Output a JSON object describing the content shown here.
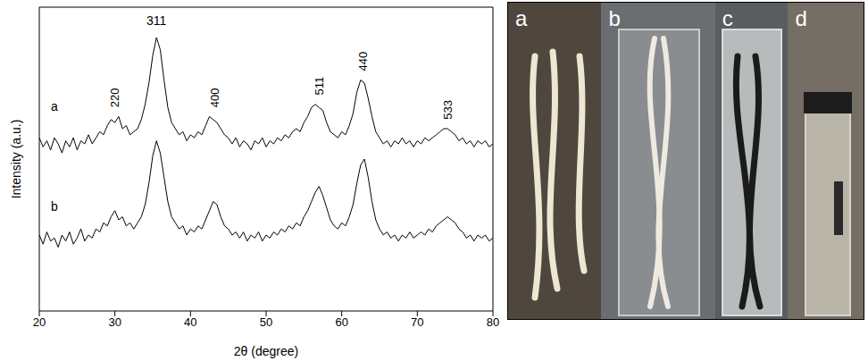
{
  "chart_data": {
    "type": "line",
    "x_label": "2θ (degree)",
    "y_label": "Intensity (a.u.)",
    "x": [
      20,
      20.5,
      21,
      21.5,
      22,
      22.5,
      23,
      23.5,
      24,
      24.5,
      25,
      25.5,
      26,
      26.5,
      27,
      27.5,
      28,
      28.5,
      29,
      29.5,
      30,
      30.5,
      31,
      31.5,
      32,
      32.5,
      33,
      33.5,
      34,
      34.5,
      35,
      35.5,
      36,
      36.5,
      37,
      37.5,
      38,
      38.5,
      39,
      39.5,
      40,
      40.5,
      41,
      41.5,
      42,
      42.5,
      43,
      43.5,
      44,
      44.5,
      45,
      45.5,
      46,
      46.5,
      47,
      47.5,
      48,
      48.5,
      49,
      49.5,
      50,
      50.5,
      51,
      51.5,
      52,
      52.5,
      53,
      53.5,
      54,
      54.5,
      55,
      55.5,
      56,
      56.5,
      57,
      57.5,
      58,
      58.5,
      59,
      59.5,
      60,
      60.5,
      61,
      61.5,
      62,
      62.5,
      63,
      63.5,
      64,
      64.5,
      65,
      65.5,
      66,
      66.5,
      67,
      67.5,
      68,
      68.5,
      69,
      69.5,
      70,
      70.5,
      71,
      71.5,
      72,
      72.5,
      73,
      73.5,
      74,
      74.5,
      75,
      75.5,
      76,
      76.5,
      77,
      77.5,
      78,
      78.5,
      79,
      79.5,
      80
    ],
    "series": [
      {
        "name": "a",
        "color": "#000000",
        "values": [
          57,
          54,
          56,
          53,
          57,
          55,
          52,
          56,
          54,
          57,
          53,
          56,
          55,
          58,
          55,
          57,
          59,
          58,
          61,
          63,
          62,
          64,
          60,
          61,
          58,
          59,
          60,
          63,
          68,
          75,
          84,
          90,
          86,
          76,
          67,
          62,
          60,
          58,
          59,
          56,
          58,
          57,
          59,
          58,
          61,
          64,
          63,
          62,
          60,
          58,
          57,
          55,
          57,
          54,
          56,
          55,
          53,
          56,
          55,
          57,
          54,
          56,
          55,
          57,
          56,
          58,
          57,
          59,
          60,
          59,
          62,
          64,
          67,
          68,
          67,
          66,
          62,
          59,
          58,
          57,
          59,
          58,
          61,
          65,
          72,
          76,
          75,
          70,
          64,
          59,
          57,
          55,
          56,
          54,
          56,
          55,
          57,
          55,
          56,
          54,
          56,
          55,
          57,
          56,
          57,
          58,
          59,
          60,
          60,
          59,
          58,
          56,
          57,
          55,
          56,
          54,
          56,
          55,
          56,
          54,
          55
        ]
      },
      {
        "name": "b",
        "color": "#000000",
        "values": [
          25,
          22,
          26,
          23,
          24,
          21,
          25,
          23,
          26,
          22,
          24,
          27,
          23,
          25,
          24,
          27,
          26,
          29,
          28,
          31,
          33,
          30,
          31,
          28,
          29,
          27,
          29,
          31,
          35,
          42,
          51,
          56,
          52,
          44,
          36,
          31,
          29,
          27,
          28,
          25,
          27,
          26,
          28,
          27,
          30,
          33,
          36,
          35,
          31,
          28,
          27,
          25,
          26,
          24,
          26,
          23,
          25,
          24,
          26,
          23,
          25,
          24,
          26,
          25,
          27,
          26,
          28,
          27,
          29,
          28,
          31,
          33,
          36,
          39,
          41,
          38,
          34,
          30,
          28,
          27,
          29,
          28,
          31,
          35,
          42,
          48,
          50,
          44,
          36,
          30,
          27,
          25,
          26,
          24,
          25,
          23,
          25,
          24,
          26,
          24,
          25,
          26,
          25,
          27,
          26,
          28,
          29,
          30,
          31,
          30,
          29,
          27,
          26,
          24,
          25,
          23,
          25,
          24,
          25,
          23,
          24
        ]
      }
    ],
    "xlim": [
      20,
      80
    ],
    "xticks": [
      20,
      30,
      40,
      50,
      60,
      70,
      80
    ],
    "ylim": [
      0,
      100
    ],
    "tick_labels": "x",
    "grid": false,
    "annotations": [
      {
        "text": "220",
        "x": 30,
        "y": 67
      },
      {
        "text": "311",
        "x": 35.5,
        "y": 94
      },
      {
        "text": "400",
        "x": 43.2,
        "y": 67
      },
      {
        "text": "511",
        "x": 57,
        "y": 71
      },
      {
        "text": "440",
        "x": 62.8,
        "y": 79
      },
      {
        "text": "533",
        "x": 74,
        "y": 63
      }
    ]
  },
  "photo_panels": {
    "labels": [
      "a",
      "b",
      "c",
      "d"
    ]
  }
}
